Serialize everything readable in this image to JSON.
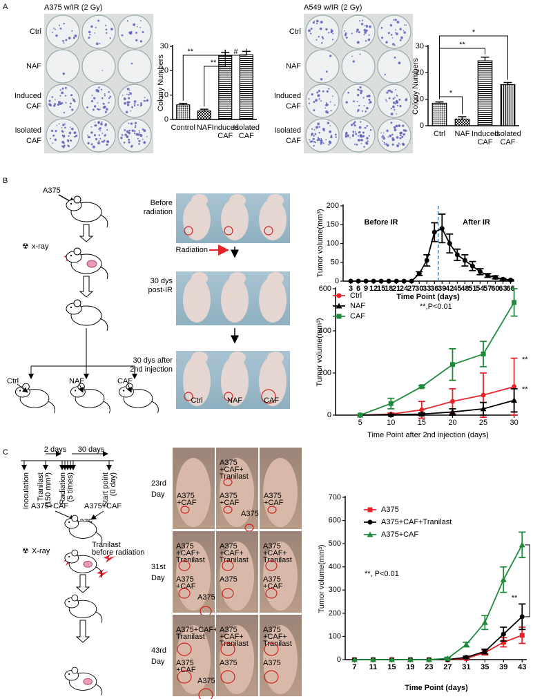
{
  "panels": {
    "a": "A",
    "b": "B",
    "c": "C"
  },
  "panel_a": {
    "left": {
      "title": "A375 w/IR (2 Gy)",
      "rows": [
        "Ctrl",
        "NAF",
        "Induced\nCAF",
        "Isolated\nCAF"
      ]
    },
    "right": {
      "title": "A549 w/IR (2 Gy)",
      "rows": [
        "Ctrl",
        "NAF",
        "Induced\nCAF",
        "Isolated\nCAF"
      ]
    }
  },
  "panel_b": {
    "diagram": {
      "cell": "A375",
      "xray": "x-ray",
      "groups": [
        "Ctrl",
        "NAF",
        "CAF"
      ]
    },
    "photos": {
      "rows": [
        "Before\nradiation",
        "30 dys\npost-IR",
        "30 dys after\n2nd injection"
      ],
      "arrow": "Radiation",
      "labels": [
        "Ctrl",
        "NAF",
        "CAF"
      ]
    }
  },
  "panel_c": {
    "timeline": {
      "spans": [
        "2 days",
        "30 days"
      ],
      "events": [
        "Inoculation",
        "Tranilast\n(150 mm³)",
        "Radiation\n(5 times)",
        "Start point\n(0 day)"
      ]
    },
    "diagram": {
      "labels": [
        "A375+CAF",
        "A375+CAF",
        "A375"
      ],
      "xray": "X-ray",
      "tranilast": "Tranilast",
      "tranilast_note": "before radiation"
    },
    "photos": {
      "days": [
        "23rd\nDay",
        "31st\nDay",
        "43rd\nDay"
      ],
      "labels": [
        [
          [
            "A375\n+CAF"
          ],
          [
            "A375\n+CAF+\nTranilast",
            "A375\n+CAF",
            "A375"
          ],
          [
            "A375\n+CAF"
          ]
        ],
        [
          [
            "A375\n+CAF+\nTranilast",
            "A375\n+CAF",
            "A375"
          ],
          [
            "A375\n+CAF+\nTranilast",
            "A375"
          ],
          [
            "A375\n+CAF+\nTranilast",
            "A375\n+CAF"
          ]
        ],
        [
          [
            "A375+CAF+\nTranilast",
            "A375\n+CAF",
            "A375"
          ],
          [
            "A375\n+CAF+\nTranilast",
            "A375"
          ],
          [
            "A375\n+CAF+\nTranilast",
            "A375"
          ]
        ]
      ]
    }
  },
  "chart_data": [
    {
      "type": "bar",
      "ylabel": "Colony Numbers",
      "categories": [
        "Control",
        "NAF",
        "Induced\nCAF",
        "Isolated\nCAF"
      ],
      "values": [
        6,
        3.5,
        26,
        26.5
      ],
      "errors": [
        0.6,
        0.7,
        1.5,
        1.4
      ],
      "patterns": [
        "dots",
        "checker",
        "hlines",
        "hlines"
      ],
      "ylim": [
        0,
        30
      ],
      "yticks": [
        0,
        10,
        20,
        30
      ],
      "annotations": [
        "**",
        "**",
        "#"
      ]
    },
    {
      "type": "bar",
      "ylabel": "Colony Numbers",
      "categories": [
        "Ctrl",
        "NAF",
        "Induced\nCAF",
        "Isolated\nCAF"
      ],
      "values": [
        8.5,
        2.5,
        24.5,
        15.5
      ],
      "errors": [
        0.5,
        0.9,
        1.4,
        0.8
      ],
      "patterns": [
        "dots",
        "checker",
        "hlines",
        "vlines"
      ],
      "ylim": [
        0,
        30
      ],
      "yticks": [
        0,
        10,
        20,
        30
      ],
      "annotations": [
        "*",
        "**",
        "*"
      ]
    },
    {
      "type": "line",
      "ylabel": "Tumor volume(mm³)",
      "xlabel": "Time Point (days)",
      "x": [
        3,
        6,
        9,
        12,
        15,
        18,
        21,
        24,
        27,
        30,
        33,
        36,
        39,
        42,
        45,
        48,
        51,
        54,
        57,
        60,
        63,
        66
      ],
      "xlim": [
        0,
        67.5
      ],
      "xticks": [
        3,
        6,
        9,
        12,
        15,
        18,
        21,
        24,
        27,
        30,
        33,
        36,
        39,
        42,
        45,
        48,
        51,
        54,
        57,
        60,
        63,
        66
      ],
      "ylim": [
        0,
        200
      ],
      "yticks": [
        0,
        50,
        100,
        150,
        200
      ],
      "annotations": [
        "Before IR",
        "After IR"
      ],
      "series": [
        {
          "color": "#000000",
          "marker": "circle",
          "values": [
            0,
            0,
            0,
            0,
            0,
            0,
            0,
            0,
            0,
            20,
            55,
            130,
            140,
            100,
            70,
            55,
            40,
            25,
            15,
            10,
            5,
            3
          ],
          "errors": [
            0,
            0,
            0,
            0,
            0,
            0,
            0,
            0,
            0,
            5,
            15,
            25,
            38,
            25,
            15,
            15,
            12,
            8,
            5,
            4,
            2,
            1
          ]
        }
      ]
    },
    {
      "type": "line",
      "ylabel": "Tumor volume(mm³)",
      "xlabel": "Time Point after 2nd injection (days)",
      "x": [
        5,
        10,
        15,
        20,
        25,
        30
      ],
      "xlim": [
        1,
        30.6
      ],
      "xticks": [
        5,
        10,
        15,
        20,
        25,
        30
      ],
      "ylim": [
        0,
        600
      ],
      "yticks": [
        0,
        200,
        400,
        600
      ],
      "legend": "upper left",
      "annotations": [
        "**,P<0.01",
        "**",
        "**"
      ],
      "series": [
        {
          "name": "Ctrl",
          "color": "#e8242a",
          "marker": "circle",
          "values": [
            0,
            5,
            25,
            65,
            95,
            135
          ],
          "errors": [
            0,
            5,
            40,
            60,
            105,
            135
          ]
        },
        {
          "name": "NAF",
          "color": "#000000",
          "marker": "triangle",
          "values": [
            0,
            2,
            5,
            15,
            30,
            70
          ],
          "errors": [
            0,
            2,
            5,
            15,
            30,
            55
          ]
        },
        {
          "name": "CAF",
          "color": "#1f8a3c",
          "marker": "square",
          "values": [
            0,
            55,
            135,
            240,
            290,
            535
          ],
          "errors": [
            0,
            25,
            5,
            75,
            60,
            65
          ]
        }
      ]
    },
    {
      "type": "line",
      "ylabel": "Tumor volume(mm³)",
      "xlabel": "Time Point (days)",
      "x": [
        7,
        11,
        15,
        19,
        23,
        27,
        31,
        35,
        39,
        43
      ],
      "xlim": [
        5,
        44
      ],
      "xticks": [
        7,
        11,
        15,
        19,
        23,
        27,
        31,
        35,
        39,
        43
      ],
      "ylim": [
        0,
        700
      ],
      "yticks": [
        0,
        100,
        200,
        300,
        400,
        500,
        600,
        700
      ],
      "legend": "upper left",
      "annotations": [
        "**, P<0.01",
        "**"
      ],
      "series": [
        {
          "name": "A375",
          "color": "#e8242a",
          "marker": "square",
          "values": [
            0,
            0,
            0,
            0,
            0,
            0,
            5,
            30,
            75,
            105
          ],
          "errors": [
            0,
            0,
            0,
            0,
            0,
            0,
            5,
            10,
            20,
            35
          ]
        },
        {
          "name": "A375+CAF+Tranilast",
          "color": "#000000",
          "marker": "circle",
          "values": [
            0,
            0,
            0,
            0,
            0,
            0,
            10,
            35,
            110,
            185
          ],
          "errors": [
            0,
            0,
            0,
            0,
            0,
            0,
            5,
            10,
            30,
            55
          ]
        },
        {
          "name": "A375+CAF",
          "color": "#1f8a3c",
          "marker": "triangle",
          "values": [
            0,
            0,
            0,
            0,
            0,
            5,
            65,
            160,
            345,
            495
          ],
          "errors": [
            0,
            0,
            0,
            0,
            0,
            5,
            10,
            30,
            55,
            55
          ]
        }
      ]
    }
  ]
}
